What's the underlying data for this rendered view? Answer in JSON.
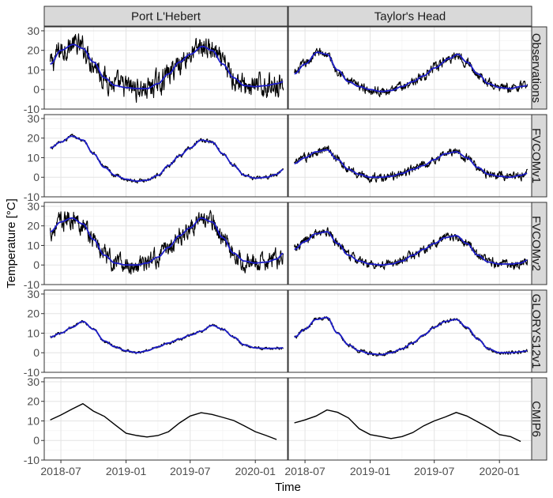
{
  "chart_data": {
    "type": "line",
    "xlabel": "Time",
    "ylabel": "Temperature [°C]",
    "ylim": [
      -10,
      32
    ],
    "yticks": [
      -10,
      0,
      10,
      20,
      30
    ],
    "xlim": [
      "2018-05-15",
      "2020-04-01"
    ],
    "xticks": [
      {
        "date": "2018-07-01",
        "label": "2018-07"
      },
      {
        "date": "2019-01-01",
        "label": "2019-01"
      },
      {
        "date": "2019-07-01",
        "label": "2019-07"
      },
      {
        "date": "2020-01-01",
        "label": "2020-01"
      }
    ],
    "grid": true,
    "colors": {
      "raw": "#000000",
      "smooth": "#1c1cc8"
    },
    "columns": [
      "Port L'Hebert",
      "Taylor's Head"
    ],
    "rows": [
      "Observations",
      "FVCOMv1",
      "FVCOMv2",
      "GLORYS12v1",
      "CMIP6"
    ],
    "panels": [
      {
        "column": "Port L'Hebert",
        "row": "Observations",
        "start": "2018-06-01",
        "end": "2020-03-20",
        "noise": 5.0,
        "noisy": true,
        "smooth": true,
        "anchors": [
          [
            "2018-06-01",
            13
          ],
          [
            "2018-07-01",
            20
          ],
          [
            "2018-08-05",
            23
          ],
          [
            "2018-09-01",
            21
          ],
          [
            "2018-10-01",
            14
          ],
          [
            "2018-11-01",
            6
          ],
          [
            "2018-12-01",
            2
          ],
          [
            "2019-01-01",
            1
          ],
          [
            "2019-02-01",
            0.5
          ],
          [
            "2019-03-01",
            0.5
          ],
          [
            "2019-04-01",
            3
          ],
          [
            "2019-05-01",
            8
          ],
          [
            "2019-06-01",
            14
          ],
          [
            "2019-07-01",
            18
          ],
          [
            "2019-08-05",
            22
          ],
          [
            "2019-09-01",
            20
          ],
          [
            "2019-10-01",
            13
          ],
          [
            "2019-11-01",
            6
          ],
          [
            "2019-12-01",
            2
          ],
          [
            "2020-01-01",
            1.5
          ],
          [
            "2020-02-01",
            2
          ],
          [
            "2020-03-01",
            3
          ],
          [
            "2020-03-20",
            4
          ]
        ]
      },
      {
        "column": "Taylor's Head",
        "row": "Observations",
        "start": "2018-06-01",
        "end": "2020-03-20",
        "noise": 2.0,
        "noisy": true,
        "smooth": true,
        "anchors": [
          [
            "2018-06-01",
            8
          ],
          [
            "2018-07-01",
            13
          ],
          [
            "2018-08-05",
            19
          ],
          [
            "2018-09-01",
            18
          ],
          [
            "2018-10-01",
            10
          ],
          [
            "2018-11-01",
            4
          ],
          [
            "2018-12-01",
            1.5
          ],
          [
            "2019-01-01",
            0
          ],
          [
            "2019-02-01",
            -1
          ],
          [
            "2019-03-01",
            -0.5
          ],
          [
            "2019-04-01",
            1.5
          ],
          [
            "2019-05-01",
            4
          ],
          [
            "2019-06-01",
            7
          ],
          [
            "2019-07-01",
            11
          ],
          [
            "2019-08-15",
            16
          ],
          [
            "2019-09-05",
            18
          ],
          [
            "2019-10-01",
            14
          ],
          [
            "2019-11-01",
            8
          ],
          [
            "2019-12-01",
            3
          ],
          [
            "2020-01-01",
            1
          ],
          [
            "2020-02-01",
            0.5
          ],
          [
            "2020-03-01",
            1.5
          ],
          [
            "2020-03-20",
            2
          ]
        ]
      },
      {
        "column": "Port L'Hebert",
        "row": "FVCOMv1",
        "start": "2018-06-01",
        "end": "2020-03-20",
        "noise": 0.8,
        "noisy": true,
        "smooth": true,
        "anchors": [
          [
            "2018-06-01",
            15
          ],
          [
            "2018-07-01",
            18
          ],
          [
            "2018-08-01",
            21
          ],
          [
            "2018-09-01",
            19
          ],
          [
            "2018-10-01",
            12
          ],
          [
            "2018-11-01",
            5
          ],
          [
            "2018-12-01",
            1
          ],
          [
            "2019-01-01",
            -1
          ],
          [
            "2019-02-01",
            -2
          ],
          [
            "2019-03-01",
            -1.5
          ],
          [
            "2019-04-01",
            1
          ],
          [
            "2019-05-01",
            6
          ],
          [
            "2019-06-01",
            11
          ],
          [
            "2019-07-01",
            15
          ],
          [
            "2019-08-01",
            19
          ],
          [
            "2019-09-01",
            18
          ],
          [
            "2019-10-01",
            12
          ],
          [
            "2019-11-01",
            6
          ],
          [
            "2019-12-01",
            1
          ],
          [
            "2020-01-01",
            -0.5
          ],
          [
            "2020-02-01",
            0
          ],
          [
            "2020-03-01",
            1.5
          ],
          [
            "2020-03-20",
            4
          ]
        ]
      },
      {
        "column": "Taylor's Head",
        "row": "FVCOMv1",
        "start": "2018-06-01",
        "end": "2020-03-20",
        "noise": 1.8,
        "noisy": true,
        "smooth": true,
        "anchors": [
          [
            "2018-06-01",
            7
          ],
          [
            "2018-07-01",
            10
          ],
          [
            "2018-08-01",
            13
          ],
          [
            "2018-09-01",
            14
          ],
          [
            "2018-10-01",
            9
          ],
          [
            "2018-11-01",
            4
          ],
          [
            "2018-12-01",
            1.5
          ],
          [
            "2019-01-01",
            0
          ],
          [
            "2019-02-01",
            0
          ],
          [
            "2019-03-01",
            0.5
          ],
          [
            "2019-04-01",
            2
          ],
          [
            "2019-05-01",
            4
          ],
          [
            "2019-06-01",
            6
          ],
          [
            "2019-07-01",
            9
          ],
          [
            "2019-08-01",
            12
          ],
          [
            "2019-09-01",
            13
          ],
          [
            "2019-10-01",
            10
          ],
          [
            "2019-11-01",
            5
          ],
          [
            "2019-12-01",
            1.5
          ],
          [
            "2020-01-01",
            0.5
          ],
          [
            "2020-02-01",
            0
          ],
          [
            "2020-03-01",
            1
          ],
          [
            "2020-03-20",
            2
          ]
        ]
      },
      {
        "column": "Port L'Hebert",
        "row": "FVCOMv2",
        "start": "2018-06-01",
        "end": "2020-03-20",
        "noise": 4.0,
        "noisy": true,
        "smooth": true,
        "anchors": [
          [
            "2018-06-01",
            17
          ],
          [
            "2018-07-01",
            22
          ],
          [
            "2018-08-01",
            24
          ],
          [
            "2018-09-01",
            21
          ],
          [
            "2018-10-01",
            13
          ],
          [
            "2018-11-01",
            5
          ],
          [
            "2018-12-01",
            1
          ],
          [
            "2019-01-01",
            0
          ],
          [
            "2019-02-01",
            0
          ],
          [
            "2019-03-01",
            1
          ],
          [
            "2019-04-01",
            4
          ],
          [
            "2019-05-01",
            9
          ],
          [
            "2019-06-01",
            15
          ],
          [
            "2019-07-01",
            19
          ],
          [
            "2019-08-01",
            24
          ],
          [
            "2019-09-01",
            22
          ],
          [
            "2019-10-01",
            14
          ],
          [
            "2019-11-01",
            6
          ],
          [
            "2019-12-01",
            2
          ],
          [
            "2020-01-01",
            1
          ],
          [
            "2020-02-01",
            1.5
          ],
          [
            "2020-03-01",
            3
          ],
          [
            "2020-03-20",
            6
          ]
        ]
      },
      {
        "column": "Taylor's Head",
        "row": "FVCOMv2",
        "start": "2018-06-01",
        "end": "2020-03-20",
        "noise": 2.0,
        "noisy": true,
        "smooth": true,
        "anchors": [
          [
            "2018-06-01",
            8
          ],
          [
            "2018-07-01",
            12
          ],
          [
            "2018-08-01",
            16
          ],
          [
            "2018-09-01",
            17
          ],
          [
            "2018-10-01",
            11
          ],
          [
            "2018-11-01",
            5
          ],
          [
            "2018-12-01",
            2
          ],
          [
            "2019-01-01",
            0.5
          ],
          [
            "2019-02-01",
            0
          ],
          [
            "2019-03-01",
            0.5
          ],
          [
            "2019-04-01",
            2
          ],
          [
            "2019-05-01",
            5
          ],
          [
            "2019-06-01",
            8
          ],
          [
            "2019-07-01",
            11
          ],
          [
            "2019-08-01",
            14
          ],
          [
            "2019-09-01",
            15
          ],
          [
            "2019-10-01",
            11
          ],
          [
            "2019-11-01",
            5
          ],
          [
            "2019-12-01",
            1.5
          ],
          [
            "2020-01-01",
            0.5
          ],
          [
            "2020-02-01",
            0.5
          ],
          [
            "2020-03-01",
            1
          ],
          [
            "2020-03-20",
            2.5
          ]
        ]
      },
      {
        "column": "Port L'Hebert",
        "row": "GLORYS12v1",
        "start": "2018-06-01",
        "end": "2020-03-20",
        "noise": 0.6,
        "noisy": true,
        "smooth": true,
        "anchors": [
          [
            "2018-06-01",
            8
          ],
          [
            "2018-07-01",
            10
          ],
          [
            "2018-08-01",
            13
          ],
          [
            "2018-09-01",
            16
          ],
          [
            "2018-10-01",
            12
          ],
          [
            "2018-11-01",
            6
          ],
          [
            "2018-12-01",
            3
          ],
          [
            "2019-01-01",
            1
          ],
          [
            "2019-02-01",
            0
          ],
          [
            "2019-03-01",
            1
          ],
          [
            "2019-04-01",
            3
          ],
          [
            "2019-05-01",
            5
          ],
          [
            "2019-06-01",
            7
          ],
          [
            "2019-07-01",
            9
          ],
          [
            "2019-08-01",
            11
          ],
          [
            "2019-09-01",
            14
          ],
          [
            "2019-10-01",
            12
          ],
          [
            "2019-11-01",
            8
          ],
          [
            "2019-12-01",
            4
          ],
          [
            "2020-01-01",
            2.5
          ],
          [
            "2020-02-01",
            2.2
          ],
          [
            "2020-03-01",
            2.3
          ],
          [
            "2020-03-20",
            2.5
          ]
        ]
      },
      {
        "column": "Taylor's Head",
        "row": "GLORYS12v1",
        "start": "2018-06-01",
        "end": "2020-03-20",
        "noise": 0.8,
        "noisy": true,
        "smooth": true,
        "anchors": [
          [
            "2018-06-01",
            8
          ],
          [
            "2018-07-01",
            12
          ],
          [
            "2018-08-01",
            17
          ],
          [
            "2018-09-01",
            18
          ],
          [
            "2018-10-01",
            10
          ],
          [
            "2018-11-01",
            4
          ],
          [
            "2018-12-01",
            1
          ],
          [
            "2019-01-01",
            -0.5
          ],
          [
            "2019-02-01",
            -1
          ],
          [
            "2019-03-01",
            0
          ],
          [
            "2019-04-01",
            2
          ],
          [
            "2019-05-01",
            5
          ],
          [
            "2019-06-01",
            9
          ],
          [
            "2019-07-01",
            13
          ],
          [
            "2019-08-01",
            16
          ],
          [
            "2019-09-01",
            17
          ],
          [
            "2019-10-01",
            13
          ],
          [
            "2019-11-01",
            7
          ],
          [
            "2019-12-01",
            2
          ],
          [
            "2020-01-01",
            0
          ],
          [
            "2020-02-01",
            0
          ],
          [
            "2020-03-01",
            0.5
          ],
          [
            "2020-03-20",
            1
          ]
        ]
      },
      {
        "column": "Port L'Hebert",
        "row": "CMIP6",
        "noisy": false,
        "smooth": false,
        "points": [
          [
            "2018-06-01",
            10.5
          ],
          [
            "2018-07-01",
            13
          ],
          [
            "2018-08-01",
            16
          ],
          [
            "2018-09-01",
            18.8
          ],
          [
            "2018-10-01",
            15
          ],
          [
            "2018-11-01",
            12.3
          ],
          [
            "2018-12-01",
            8
          ],
          [
            "2019-01-01",
            3.7
          ],
          [
            "2019-02-01",
            2.5
          ],
          [
            "2019-03-01",
            1.8
          ],
          [
            "2019-04-01",
            2.5
          ],
          [
            "2019-05-01",
            4.5
          ],
          [
            "2019-06-01",
            9
          ],
          [
            "2019-07-01",
            12.5
          ],
          [
            "2019-08-01",
            14.2
          ],
          [
            "2019-09-01",
            13.3
          ],
          [
            "2019-10-01",
            11.8
          ],
          [
            "2019-11-01",
            10.2
          ],
          [
            "2019-12-01",
            7.5
          ],
          [
            "2020-01-01",
            4.5
          ],
          [
            "2020-02-01",
            2.5
          ],
          [
            "2020-03-01",
            0.5
          ]
        ]
      },
      {
        "column": "Taylor's Head",
        "row": "CMIP6",
        "noisy": false,
        "smooth": false,
        "points": [
          [
            "2018-06-01",
            9
          ],
          [
            "2018-07-01",
            10.5
          ],
          [
            "2018-08-01",
            12.5
          ],
          [
            "2018-09-01",
            15.6
          ],
          [
            "2018-10-01",
            14.4
          ],
          [
            "2018-11-01",
            11.5
          ],
          [
            "2018-12-01",
            6
          ],
          [
            "2019-01-01",
            3
          ],
          [
            "2019-02-01",
            2
          ],
          [
            "2019-03-01",
            1
          ],
          [
            "2019-04-01",
            2
          ],
          [
            "2019-05-01",
            4
          ],
          [
            "2019-06-01",
            7.5
          ],
          [
            "2019-07-01",
            10
          ],
          [
            "2019-08-01",
            12
          ],
          [
            "2019-09-01",
            14.3
          ],
          [
            "2019-10-01",
            12.5
          ],
          [
            "2019-11-01",
            9.5
          ],
          [
            "2019-12-01",
            6.5
          ],
          [
            "2020-01-01",
            3
          ],
          [
            "2020-02-01",
            2
          ],
          [
            "2020-03-01",
            -0.5
          ]
        ]
      }
    ]
  }
}
